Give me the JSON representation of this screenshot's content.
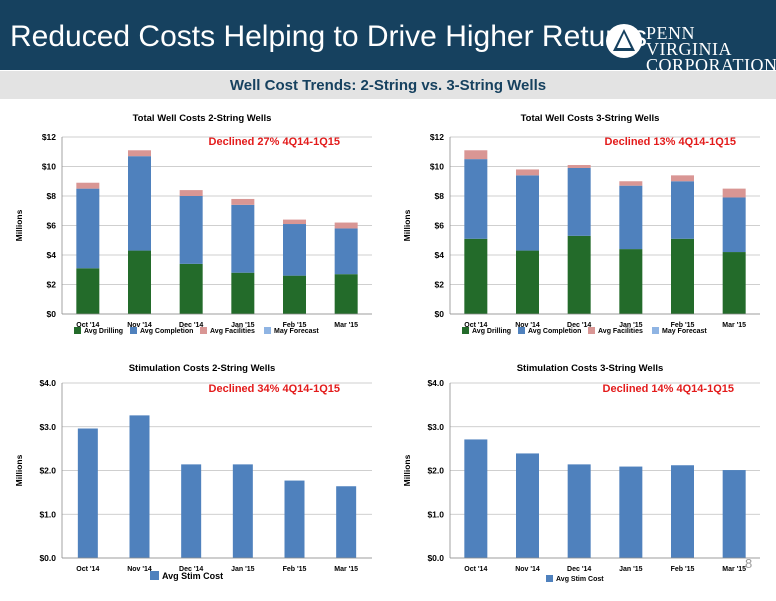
{
  "header": {
    "title": "Reduced Costs Helping to Drive Higher Returns",
    "logo_line1": "PENN VIRGINIA",
    "logo_line2": "CORPORATION",
    "subtitle": "Well Cost Trends: 2-String vs. 3-String Wells"
  },
  "page_number": "8",
  "colors": {
    "header_bg": "#16415f",
    "drilling": "#236b2a",
    "completion": "#4f81bd",
    "facilities": "#d99694",
    "forecast": "#8fb4e3",
    "stim": "#4f81bd",
    "annotation": "#e31b1b"
  },
  "chart_data": [
    {
      "type": "bar",
      "stacked": true,
      "title": "Total Well Costs 2-String Wells",
      "annotation": "Declined 27% 4Q14-1Q15",
      "ylabel": "Millions",
      "ylim": [
        0,
        12
      ],
      "yticks": [
        0,
        2,
        4,
        6,
        8,
        10,
        12
      ],
      "ytick_labels": [
        "$0",
        "$2",
        "$4",
        "$6",
        "$8",
        "$10",
        "$12"
      ],
      "categories": [
        "Oct '14",
        "Nov '14",
        "Dec '14",
        "Jan '15",
        "Feb '15",
        "Mar '15"
      ],
      "series": [
        {
          "name": "Avg Drilling",
          "values": [
            3.1,
            4.3,
            3.4,
            2.8,
            2.6,
            2.7
          ]
        },
        {
          "name": "Avg Completion",
          "values": [
            5.4,
            6.4,
            4.6,
            4.6,
            3.5,
            3.1
          ]
        },
        {
          "name": "Avg Facilities",
          "values": [
            0.4,
            0.4,
            0.4,
            0.4,
            0.3,
            0.4
          ]
        },
        {
          "name": "May Forecast",
          "values": [
            0,
            0,
            0,
            0,
            0,
            0
          ]
        }
      ],
      "legend": "bottom"
    },
    {
      "type": "bar",
      "stacked": true,
      "title": "Total Well Costs 3-String Wells",
      "annotation": "Declined 13% 4Q14-1Q15",
      "ylabel": "Millions",
      "ylim": [
        0,
        12
      ],
      "yticks": [
        0,
        2,
        4,
        6,
        8,
        10,
        12
      ],
      "ytick_labels": [
        "$0",
        "$2",
        "$4",
        "$6",
        "$8",
        "$10",
        "$12"
      ],
      "categories": [
        "Oct '14",
        "Nov '14",
        "Dec '14",
        "Jan '15",
        "Feb '15",
        "Mar '15"
      ],
      "series": [
        {
          "name": "Avg Drilling",
          "values": [
            5.1,
            4.3,
            5.3,
            4.4,
            5.1,
            4.2
          ]
        },
        {
          "name": "Avg Completion",
          "values": [
            5.4,
            5.1,
            4.6,
            4.3,
            3.9,
            3.7
          ]
        },
        {
          "name": "Avg Facilities",
          "values": [
            0.6,
            0.4,
            0.2,
            0.3,
            0.4,
            0.6
          ]
        },
        {
          "name": "May Forecast",
          "values": [
            0,
            0,
            0,
            0,
            0,
            0
          ]
        }
      ],
      "legend": "bottom"
    },
    {
      "type": "bar",
      "title": "Stimulation Costs 2-String Wells",
      "annotation": "Declined 34% 4Q14-1Q15",
      "ylabel": "Millions",
      "ylim": [
        0,
        4
      ],
      "yticks": [
        0,
        1,
        2,
        3,
        4
      ],
      "ytick_labels": [
        "$0.0",
        "$1.0",
        "$2.0",
        "$3.0",
        "$4.0"
      ],
      "categories": [
        "Oct '14",
        "Nov '14",
        "Dec '14",
        "Jan '15",
        "Feb '15",
        "Mar '15"
      ],
      "series": [
        {
          "name": "Avg Stim Cost",
          "values": [
            2.96,
            3.26,
            2.14,
            2.14,
            1.77,
            1.64
          ]
        }
      ],
      "legend": "bottom"
    },
    {
      "type": "bar",
      "title": "Stimulation Costs 3-String Wells",
      "annotation": "Declined 14% 4Q14-1Q15",
      "ylabel": "Millions",
      "ylim": [
        0,
        4
      ],
      "yticks": [
        0,
        1,
        2,
        3,
        4
      ],
      "ytick_labels": [
        "$0.0",
        "$1.0",
        "$2.0",
        "$3.0",
        "$4.0"
      ],
      "categories": [
        "Oct '14",
        "Nov '14",
        "Dec '14",
        "Jan '15",
        "Feb '15",
        "Mar '15"
      ],
      "series": [
        {
          "name": "Avg Stim Cost",
          "values": [
            2.71,
            2.39,
            2.14,
            2.09,
            2.12,
            2.01
          ]
        }
      ],
      "legend": "bottom"
    }
  ]
}
